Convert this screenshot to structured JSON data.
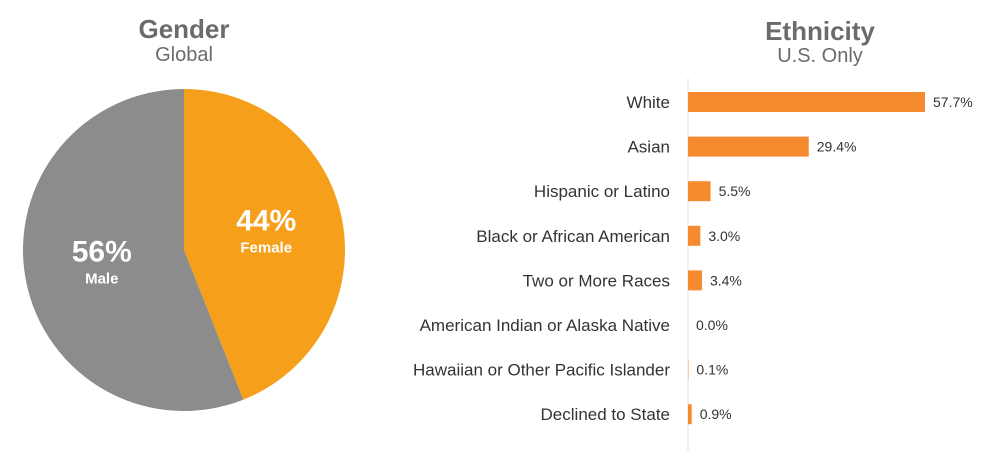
{
  "colors": {
    "male": "#8c8c8c",
    "female": "#f59f1a",
    "bar": "#f58b2e",
    "title": "#6b6b6b",
    "text": "#333333"
  },
  "gender": {
    "title": "Gender",
    "subtitle": "Global"
  },
  "ethnicity": {
    "title": "Ethnicity",
    "subtitle": "U.S. Only"
  },
  "chart_data": [
    {
      "type": "pie",
      "title": "Gender",
      "subtitle": "Global",
      "slices": [
        {
          "label": "Female",
          "value": 44,
          "value_label": "44%"
        },
        {
          "label": "Male",
          "value": 56,
          "value_label": "56%"
        }
      ]
    },
    {
      "type": "bar",
      "orientation": "horizontal",
      "title": "Ethnicity",
      "subtitle": "U.S. Only",
      "categories": [
        "White",
        "Asian",
        "Hispanic or Latino",
        "Black or African American",
        "Two or More Races",
        "American Indian or Alaska Native",
        "Hawaiian or Other Pacific Islander",
        "Declined to State"
      ],
      "values": [
        57.7,
        29.4,
        5.5,
        3.0,
        3.4,
        0.0,
        0.1,
        0.9
      ],
      "value_labels": [
        "57.7%",
        "29.4%",
        "5.5%",
        "3.0%",
        "3.4%",
        "0.0%",
        "0.1%",
        "0.9%"
      ],
      "xlim": [
        0,
        57.7
      ]
    }
  ]
}
